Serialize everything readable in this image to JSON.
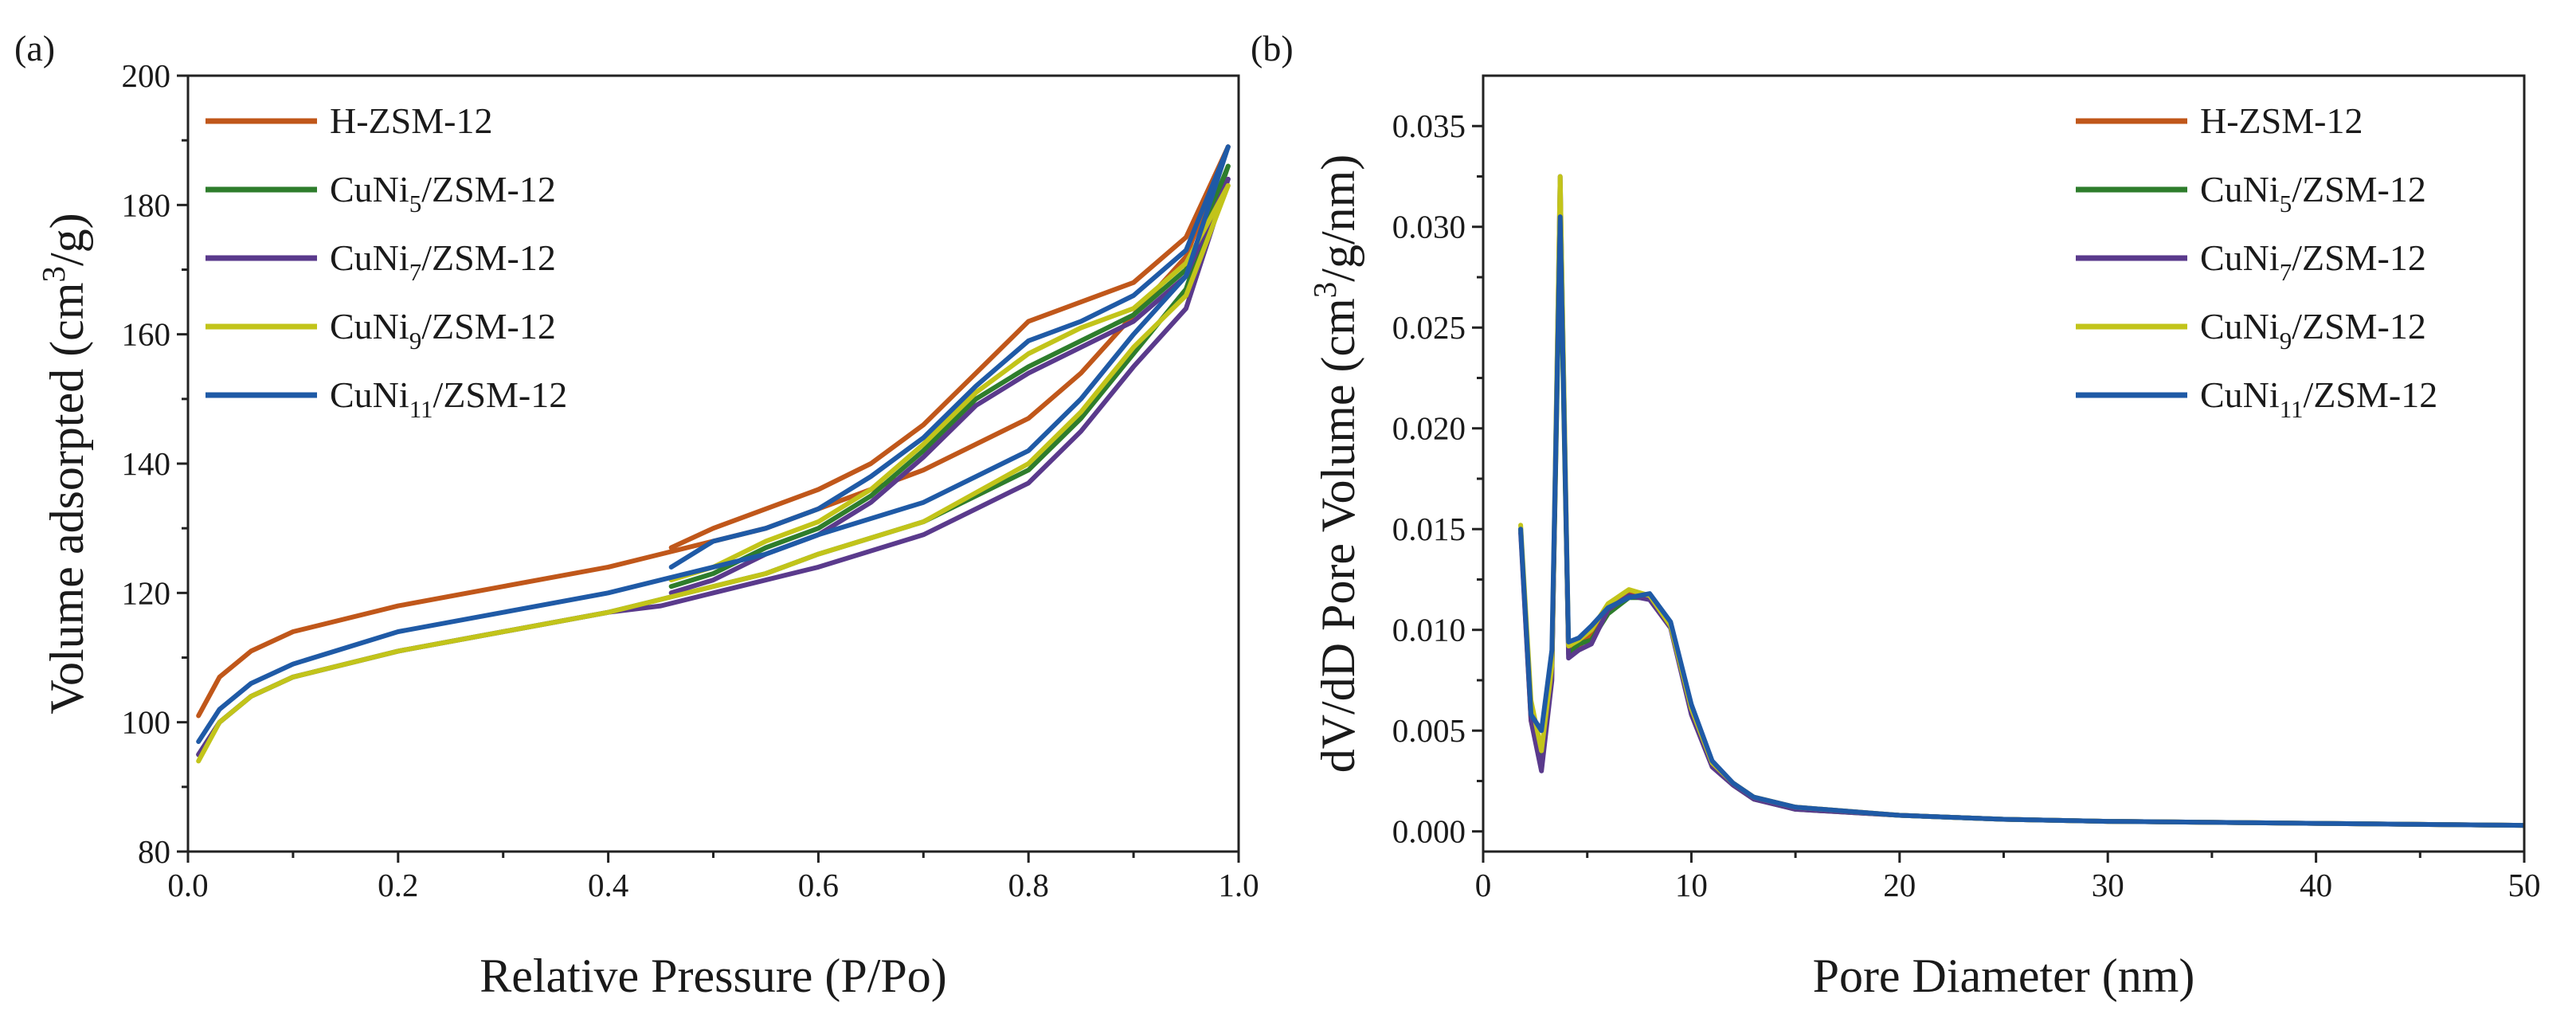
{
  "colors": {
    "H-ZSM-12": "#c0571a",
    "CuNi5/ZSM-12": "#2e7d2c",
    "CuNi7/ZSM-12": "#5a3a8c",
    "CuNi9/ZSM-12": "#c2c41a",
    "CuNi11/ZSM-12": "#1f5aa6"
  },
  "chart_data": [
    {
      "panel_label": "(a)",
      "type": "line",
      "title": "",
      "xlabel": "Relative Pressure (P/Po)",
      "ylabel": "Volume adsorpted (cm3/g)",
      "xlim": [
        0.0,
        1.0
      ],
      "ylim": [
        80,
        200
      ],
      "xticks": [
        "0.0",
        "0.2",
        "0.4",
        "0.6",
        "0.8",
        "1.0"
      ],
      "yticks": [
        "80",
        "100",
        "120",
        "140",
        "160",
        "180",
        "200"
      ],
      "legend_position": "top-left",
      "series": [
        {
          "name": "H-ZSM-12",
          "adsorption": [
            [
              0.01,
              101
            ],
            [
              0.03,
              107
            ],
            [
              0.06,
              111
            ],
            [
              0.1,
              114
            ],
            [
              0.2,
              118
            ],
            [
              0.3,
              121
            ],
            [
              0.4,
              124
            ],
            [
              0.45,
              126
            ],
            [
              0.5,
              128
            ],
            [
              0.55,
              130
            ],
            [
              0.6,
              133
            ],
            [
              0.7,
              139
            ],
            [
              0.8,
              147
            ],
            [
              0.85,
              154
            ],
            [
              0.9,
              163
            ],
            [
              0.95,
              172
            ],
            [
              0.99,
              189
            ]
          ],
          "desorption": [
            [
              0.99,
              189
            ],
            [
              0.95,
              175
            ],
            [
              0.9,
              168
            ],
            [
              0.85,
              165
            ],
            [
              0.8,
              162
            ],
            [
              0.75,
              154
            ],
            [
              0.7,
              146
            ],
            [
              0.65,
              140
            ],
            [
              0.6,
              136
            ],
            [
              0.55,
              133
            ],
            [
              0.5,
              130
            ],
            [
              0.46,
              127
            ]
          ]
        },
        {
          "name": "CuNi5/ZSM-12",
          "adsorption": [
            [
              0.01,
              95
            ],
            [
              0.03,
              100
            ],
            [
              0.06,
              104
            ],
            [
              0.1,
              107
            ],
            [
              0.2,
              111
            ],
            [
              0.3,
              114
            ],
            [
              0.4,
              117
            ],
            [
              0.45,
              119
            ],
            [
              0.5,
              121
            ],
            [
              0.55,
              123
            ],
            [
              0.6,
              126
            ],
            [
              0.7,
              131
            ],
            [
              0.8,
              139
            ],
            [
              0.85,
              147
            ],
            [
              0.9,
              157
            ],
            [
              0.95,
              167
            ],
            [
              0.99,
              186
            ]
          ],
          "desorption": [
            [
              0.99,
              186
            ],
            [
              0.95,
              170
            ],
            [
              0.9,
              163
            ],
            [
              0.85,
              159
            ],
            [
              0.8,
              155
            ],
            [
              0.75,
              150
            ],
            [
              0.7,
              142
            ],
            [
              0.65,
              135
            ],
            [
              0.6,
              130
            ],
            [
              0.55,
              127
            ],
            [
              0.5,
              123
            ],
            [
              0.46,
              121
            ]
          ]
        },
        {
          "name": "CuNi7/ZSM-12",
          "adsorption": [
            [
              0.01,
              95
            ],
            [
              0.03,
              100
            ],
            [
              0.06,
              104
            ],
            [
              0.1,
              107
            ],
            [
              0.2,
              111
            ],
            [
              0.3,
              114
            ],
            [
              0.4,
              117
            ],
            [
              0.45,
              118
            ],
            [
              0.5,
              120
            ],
            [
              0.55,
              122
            ],
            [
              0.6,
              124
            ],
            [
              0.7,
              129
            ],
            [
              0.8,
              137
            ],
            [
              0.85,
              145
            ],
            [
              0.9,
              155
            ],
            [
              0.95,
              164
            ],
            [
              0.99,
              184
            ]
          ],
          "desorption": [
            [
              0.99,
              184
            ],
            [
              0.95,
              169
            ],
            [
              0.9,
              162
            ],
            [
              0.85,
              158
            ],
            [
              0.8,
              154
            ],
            [
              0.75,
              149
            ],
            [
              0.7,
              141
            ],
            [
              0.65,
              134
            ],
            [
              0.6,
              129
            ],
            [
              0.55,
              126
            ],
            [
              0.5,
              122
            ],
            [
              0.46,
              120
            ]
          ]
        },
        {
          "name": "CuNi9/ZSM-12",
          "adsorption": [
            [
              0.01,
              94
            ],
            [
              0.03,
              100
            ],
            [
              0.06,
              104
            ],
            [
              0.1,
              107
            ],
            [
              0.2,
              111
            ],
            [
              0.3,
              114
            ],
            [
              0.4,
              117
            ],
            [
              0.45,
              119
            ],
            [
              0.5,
              121
            ],
            [
              0.55,
              123
            ],
            [
              0.6,
              126
            ],
            [
              0.7,
              131
            ],
            [
              0.8,
              140
            ],
            [
              0.85,
              148
            ],
            [
              0.9,
              158
            ],
            [
              0.95,
              166
            ],
            [
              0.99,
              183
            ]
          ],
          "desorption": [
            [
              0.99,
              183
            ],
            [
              0.95,
              171
            ],
            [
              0.9,
              164
            ],
            [
              0.85,
              161
            ],
            [
              0.8,
              157
            ],
            [
              0.75,
              151
            ],
            [
              0.7,
              143
            ],
            [
              0.65,
              136
            ],
            [
              0.6,
              131
            ],
            [
              0.55,
              128
            ],
            [
              0.5,
              124
            ],
            [
              0.46,
              122
            ]
          ]
        },
        {
          "name": "CuNi11/ZSM-12",
          "adsorption": [
            [
              0.01,
              97
            ],
            [
              0.03,
              102
            ],
            [
              0.06,
              106
            ],
            [
              0.1,
              109
            ],
            [
              0.2,
              114
            ],
            [
              0.3,
              117
            ],
            [
              0.4,
              120
            ],
            [
              0.45,
              122
            ],
            [
              0.5,
              124
            ],
            [
              0.55,
              126
            ],
            [
              0.6,
              129
            ],
            [
              0.7,
              134
            ],
            [
              0.8,
              142
            ],
            [
              0.85,
              150
            ],
            [
              0.9,
              160
            ],
            [
              0.95,
              169
            ],
            [
              0.99,
              189
            ]
          ],
          "desorption": [
            [
              0.99,
              189
            ],
            [
              0.95,
              173
            ],
            [
              0.9,
              166
            ],
            [
              0.85,
              162
            ],
            [
              0.8,
              159
            ],
            [
              0.75,
              152
            ],
            [
              0.7,
              144
            ],
            [
              0.65,
              138
            ],
            [
              0.6,
              133
            ],
            [
              0.55,
              130
            ],
            [
              0.5,
              128
            ],
            [
              0.46,
              124
            ]
          ]
        }
      ]
    },
    {
      "panel_label": "(b)",
      "type": "line",
      "title": "",
      "xlabel": "Pore Diameter (nm)",
      "ylabel": "dV/dD Pore Volume (cm3/g/nm)",
      "xlim": [
        0,
        50
      ],
      "ylim": [
        -0.001,
        0.0375
      ],
      "xticks": [
        "0",
        "10",
        "20",
        "30",
        "40",
        "50"
      ],
      "yticks": [
        "0.000",
        "0.005",
        "0.010",
        "0.015",
        "0.020",
        "0.025",
        "0.030",
        "0.035"
      ],
      "legend_position": "top-right",
      "series": [
        {
          "name": "H-ZSM-12",
          "points": [
            [
              1.8,
              0.015
            ],
            [
              2.3,
              0.0055
            ],
            [
              2.8,
              0.0035
            ],
            [
              3.3,
              0.008
            ],
            [
              3.7,
              0.0305
            ],
            [
              4.1,
              0.009
            ],
            [
              4.6,
              0.0092
            ],
            [
              5.2,
              0.0098
            ],
            [
              6,
              0.0112
            ],
            [
              7,
              0.0118
            ],
            [
              8,
              0.0116
            ],
            [
              9,
              0.0102
            ],
            [
              10,
              0.0062
            ],
            [
              11,
              0.0034
            ],
            [
              12,
              0.0024
            ],
            [
              13,
              0.0017
            ],
            [
              15,
              0.0012
            ],
            [
              20,
              0.0008
            ],
            [
              25,
              0.0006
            ],
            [
              30,
              0.0005
            ],
            [
              40,
              0.0004
            ],
            [
              50,
              0.0003
            ]
          ]
        },
        {
          "name": "CuNi5/ZSM-12",
          "points": [
            [
              1.8,
              0.015
            ],
            [
              2.3,
              0.006
            ],
            [
              2.8,
              0.0038
            ],
            [
              3.3,
              0.008
            ],
            [
              3.7,
              0.03
            ],
            [
              4.1,
              0.0088
            ],
            [
              4.6,
              0.0093
            ],
            [
              5.2,
              0.0095
            ],
            [
              6,
              0.0108
            ],
            [
              7,
              0.0116
            ],
            [
              8,
              0.0116
            ],
            [
              9,
              0.0103
            ],
            [
              10,
              0.006
            ],
            [
              11,
              0.0033
            ],
            [
              12,
              0.0023
            ],
            [
              13,
              0.0016
            ],
            [
              15,
              0.0011
            ],
            [
              20,
              0.0008
            ],
            [
              25,
              0.0006
            ],
            [
              30,
              0.0005
            ],
            [
              40,
              0.0004
            ],
            [
              50,
              0.0003
            ]
          ]
        },
        {
          "name": "CuNi7/ZSM-12",
          "points": [
            [
              1.8,
              0.0148
            ],
            [
              2.3,
              0.0055
            ],
            [
              2.8,
              0.003
            ],
            [
              3.3,
              0.0075
            ],
            [
              3.7,
              0.0325
            ],
            [
              4.1,
              0.0086
            ],
            [
              4.6,
              0.009
            ],
            [
              5.2,
              0.0093
            ],
            [
              6,
              0.011
            ],
            [
              7,
              0.0117
            ],
            [
              8,
              0.0115
            ],
            [
              9,
              0.0101
            ],
            [
              10,
              0.0058
            ],
            [
              11,
              0.0032
            ],
            [
              12,
              0.0023
            ],
            [
              13,
              0.0016
            ],
            [
              15,
              0.0011
            ],
            [
              20,
              0.0008
            ],
            [
              25,
              0.0006
            ],
            [
              30,
              0.0005
            ],
            [
              40,
              0.0004
            ],
            [
              50,
              0.0003
            ]
          ]
        },
        {
          "name": "CuNi9/ZSM-12",
          "points": [
            [
              1.8,
              0.0152
            ],
            [
              2.3,
              0.0065
            ],
            [
              2.8,
              0.004
            ],
            [
              3.3,
              0.0082
            ],
            [
              3.7,
              0.0325
            ],
            [
              4.1,
              0.0092
            ],
            [
              4.6,
              0.0095
            ],
            [
              5.2,
              0.01
            ],
            [
              6,
              0.0113
            ],
            [
              7,
              0.012
            ],
            [
              8,
              0.0117
            ],
            [
              9,
              0.0102
            ],
            [
              10,
              0.0061
            ],
            [
              11,
              0.0034
            ],
            [
              12,
              0.0024
            ],
            [
              13,
              0.0017
            ],
            [
              15,
              0.0012
            ],
            [
              20,
              0.0008
            ],
            [
              25,
              0.0006
            ],
            [
              30,
              0.0005
            ],
            [
              40,
              0.0004
            ],
            [
              50,
              0.0003
            ]
          ]
        },
        {
          "name": "CuNi11/ZSM-12",
          "points": [
            [
              1.8,
              0.015
            ],
            [
              2.3,
              0.0058
            ],
            [
              2.8,
              0.005
            ],
            [
              3.3,
              0.009
            ],
            [
              3.7,
              0.0305
            ],
            [
              4.1,
              0.0094
            ],
            [
              4.6,
              0.0096
            ],
            [
              5.2,
              0.0102
            ],
            [
              6,
              0.0111
            ],
            [
              7,
              0.0116
            ],
            [
              8,
              0.0118
            ],
            [
              9,
              0.0104
            ],
            [
              10,
              0.0063
            ],
            [
              11,
              0.0035
            ],
            [
              12,
              0.0024
            ],
            [
              13,
              0.0017
            ],
            [
              15,
              0.0012
            ],
            [
              20,
              0.0008
            ],
            [
              25,
              0.0006
            ],
            [
              30,
              0.0005
            ],
            [
              40,
              0.0004
            ],
            [
              50,
              0.0003
            ]
          ]
        }
      ]
    }
  ]
}
